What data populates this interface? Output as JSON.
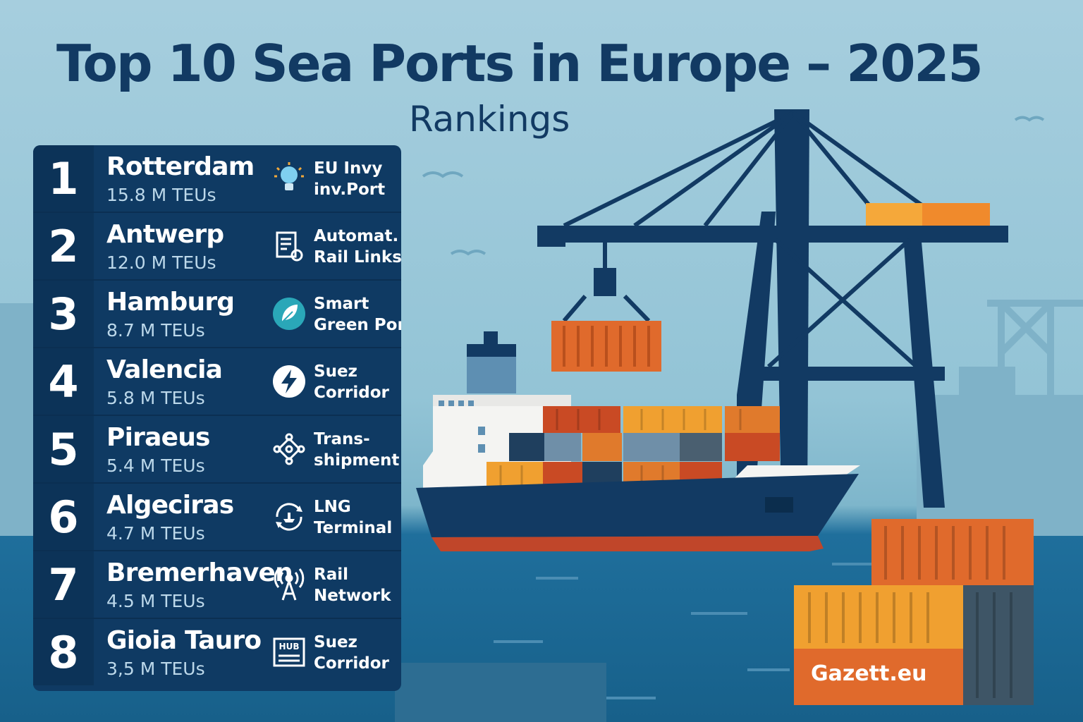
{
  "header": {
    "title": "Top 10 Sea Ports in Europe – 2025",
    "subtitle": "Rankings"
  },
  "ports": [
    {
      "rank": "1",
      "name": "Rotterdam",
      "teu": "15.8 M TEUs",
      "feature_line1": "EU Invy",
      "feature_line2": "inv.Port",
      "icon": "lightbulb-icon"
    },
    {
      "rank": "2",
      "name": "Antwerp",
      "teu": "12.0 M TEUs",
      "feature_line1": "Automat.",
      "feature_line2": "Rail Links",
      "icon": "document-gear-icon"
    },
    {
      "rank": "3",
      "name": "Hamburg",
      "teu": "8.7 M TEUs",
      "feature_line1": "Smart",
      "feature_line2": "Green Port",
      "icon": "leaf-icon"
    },
    {
      "rank": "4",
      "name": "Valencia",
      "teu": "5.8 M TEUs",
      "feature_line1": "Suez",
      "feature_line2": "Corridor",
      "icon": "lightning-icon"
    },
    {
      "rank": "5",
      "name": "Piraeus",
      "teu": "5.4 M TEUs",
      "feature_line1": "Trans-",
      "feature_line2": "shipment",
      "icon": "network-nodes-icon"
    },
    {
      "rank": "6",
      "name": "Algeciras",
      "teu": "4.7 M TEUs",
      "feature_line1": "LNG",
      "feature_line2": "Terminal",
      "icon": "refresh-ship-icon"
    },
    {
      "rank": "7",
      "name": "Bremerhaven",
      "teu": "4.5 M TEUs",
      "feature_line1": "Rail",
      "feature_line2": "Network",
      "icon": "antenna-tower-icon"
    },
    {
      "rank": "8",
      "name": "Gioia Tauro",
      "teu": "3,5 M TEUs",
      "feature_line1": "Suez",
      "feature_line2": "Corridor",
      "icon": "hub-icon"
    }
  ],
  "hub_icon_label": "HUB",
  "watermark": "Gazett.eu",
  "colors": {
    "navy": "#123a63",
    "panel": "#0f3a63",
    "container_orange": "#e06a2c",
    "container_yellow": "#f0a030",
    "sea": "#1f6f9c"
  }
}
